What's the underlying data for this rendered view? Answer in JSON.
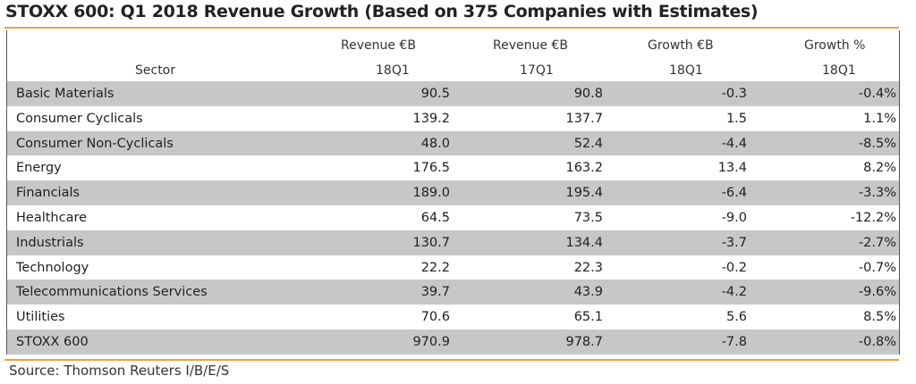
{
  "title": "STOXX 600: Q1 2018 Revenue Growth (Based on 375 Companies with Estimates)",
  "source": "Source: Thomson Reuters I/B/E/S",
  "colors": {
    "accent_rule": "#e8a23c",
    "row_shade": "#c7c7c9"
  },
  "chart_data": {
    "type": "table",
    "title": "STOXX 600: Q1 2018 Revenue Growth (Based on 375 Companies with Estimates)",
    "columns": [
      {
        "line1": "",
        "line2": "Sector"
      },
      {
        "line1": "Revenue €B",
        "line2": "18Q1"
      },
      {
        "line1": "Revenue €B",
        "line2": "17Q1"
      },
      {
        "line1": "Growth €B",
        "line2": "18Q1"
      },
      {
        "line1": "Growth %",
        "line2": "18Q1"
      }
    ],
    "rows": [
      {
        "sector": "Basic Materials",
        "rev18": "90.5",
        "rev17": "90.8",
        "growth": "-0.3",
        "growth_pct": "-0.4%",
        "shaded": true
      },
      {
        "sector": "Consumer Cyclicals",
        "rev18": "139.2",
        "rev17": "137.7",
        "growth": "1.5",
        "growth_pct": "1.1%",
        "shaded": false
      },
      {
        "sector": "Consumer Non-Cyclicals",
        "rev18": "48.0",
        "rev17": "52.4",
        "growth": "-4.4",
        "growth_pct": "-8.5%",
        "shaded": true
      },
      {
        "sector": "Energy",
        "rev18": "176.5",
        "rev17": "163.2",
        "growth": "13.4",
        "growth_pct": "8.2%",
        "shaded": false
      },
      {
        "sector": "Financials",
        "rev18": "189.0",
        "rev17": "195.4",
        "growth": "-6.4",
        "growth_pct": "-3.3%",
        "shaded": true
      },
      {
        "sector": "Healthcare",
        "rev18": "64.5",
        "rev17": "73.5",
        "growth": "-9.0",
        "growth_pct": "-12.2%",
        "shaded": false
      },
      {
        "sector": "Industrials",
        "rev18": "130.7",
        "rev17": "134.4",
        "growth": "-3.7",
        "growth_pct": "-2.7%",
        "shaded": true
      },
      {
        "sector": "Technology",
        "rev18": "22.2",
        "rev17": "22.3",
        "growth": "-0.2",
        "growth_pct": "-0.7%",
        "shaded": false
      },
      {
        "sector": "Telecommunications Services",
        "rev18": "39.7",
        "rev17": "43.9",
        "growth": "-4.2",
        "growth_pct": "-9.6%",
        "shaded": true
      },
      {
        "sector": "Utilities",
        "rev18": "70.6",
        "rev17": "65.1",
        "growth": "5.6",
        "growth_pct": "8.5%",
        "shaded": false
      },
      {
        "sector": "STOXX 600",
        "rev18": "970.9",
        "rev17": "978.7",
        "growth": "-7.8",
        "growth_pct": "-0.8%",
        "shaded": true
      }
    ]
  }
}
